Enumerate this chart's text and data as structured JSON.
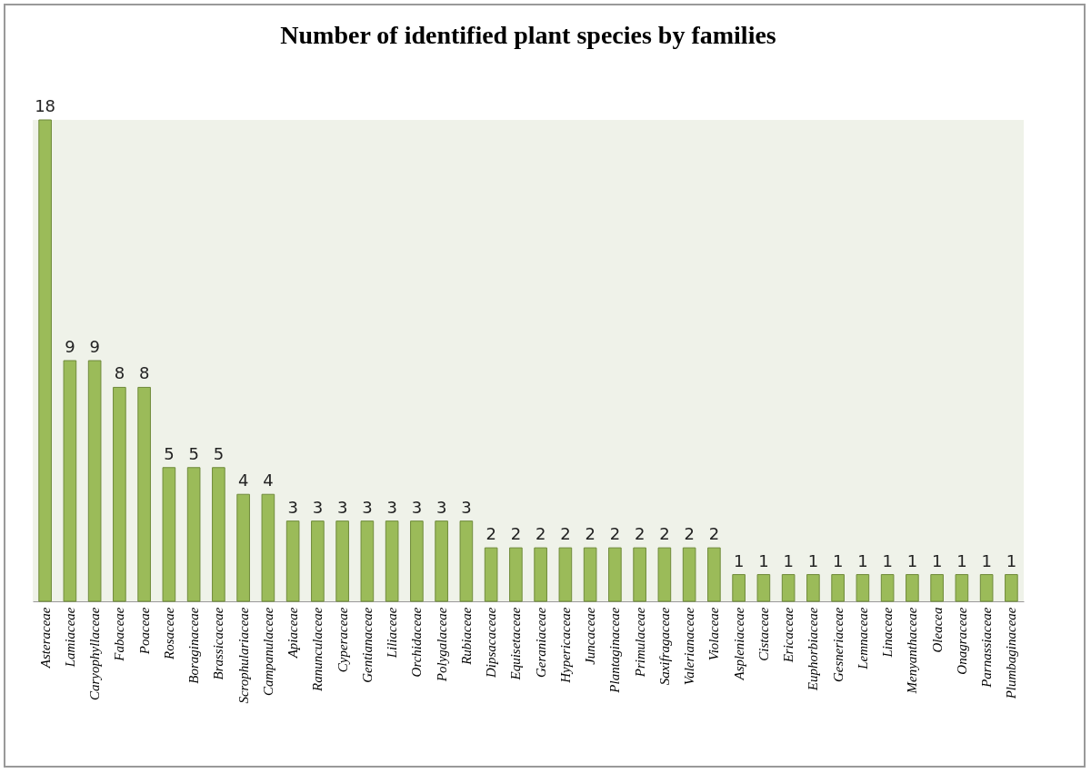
{
  "chart_data": {
    "type": "bar",
    "title": "Number of identified plant species by families",
    "categories": [
      "Asteraceae",
      "Lamiaceae",
      "Caryophyllaceae",
      "Fabaceae",
      "Poaceae",
      "Rosaceae",
      "Boraginaceae",
      "Brassicaceae",
      "Scrophulariaceae",
      "Campanulaceae",
      "Apiaceae",
      "Ranunculaceae",
      "Cyperaceae",
      "Gentianaceae",
      "Liliaceae",
      "Orchidaceae",
      "Polygalaceae",
      "Rubiaceae",
      "Dipsacaceae",
      "Equisetaceae",
      "Geraniaceae",
      "Hypericaceae",
      "Juncaceae",
      "Plantaginaceae",
      "Primulaceae",
      "Saxifragaceae",
      "Valerianaceae",
      "Violaceae",
      "Aspleniaceae",
      "Cistaceae",
      "Ericaceae",
      "Euphorbiaceae",
      "Gesneriaceae",
      "Lemnaceae",
      "Linaceae",
      "Menyanthaceae",
      "Oleacea",
      "Onagraceae",
      "Parnassiaceae",
      "Plumbaginaceae"
    ],
    "values": [
      18,
      9,
      9,
      8,
      8,
      5,
      5,
      5,
      4,
      4,
      3,
      3,
      3,
      3,
      3,
      3,
      3,
      3,
      2,
      2,
      2,
      2,
      2,
      2,
      2,
      2,
      2,
      2,
      1,
      1,
      1,
      1,
      1,
      1,
      1,
      1,
      1,
      1,
      1,
      1
    ],
    "color": "#9bbb59",
    "data_labels": true
  }
}
